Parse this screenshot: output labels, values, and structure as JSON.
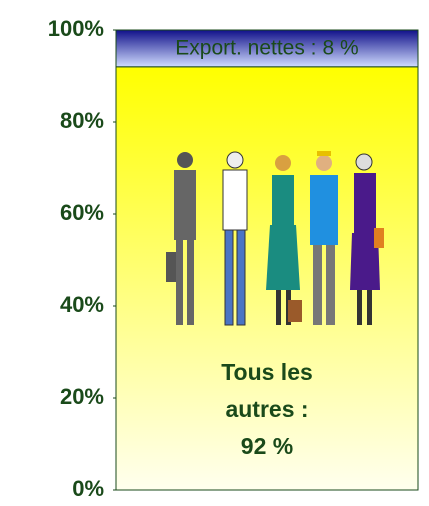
{
  "chart_data": {
    "type": "bar",
    "stacked": true,
    "categories": [
      null
    ],
    "series": [
      {
        "name": "Tous les autres :",
        "color": "#ffff00",
        "values": [
          92
        ],
        "value_labels": [
          "92 %"
        ]
      },
      {
        "name": "Export. nettes :",
        "color": "#1a1a8c",
        "values": [
          8
        ],
        "value_labels": [
          "8 %"
        ]
      }
    ],
    "ylim": [
      0,
      100
    ],
    "yticks": [
      {
        "value": 0,
        "label": "0%"
      },
      {
        "value": 20,
        "label": "20%"
      },
      {
        "value": 40,
        "label": "40%"
      },
      {
        "value": 60,
        "label": "60%"
      },
      {
        "value": 80,
        "label": "80%"
      },
      {
        "value": 100,
        "label": "100%"
      }
    ]
  }
}
